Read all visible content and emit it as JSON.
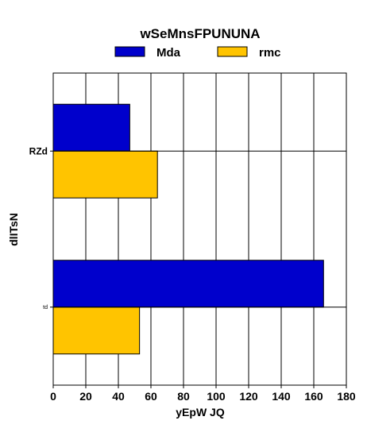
{
  "chart_data": {
    "type": "bar",
    "orientation": "horizontal",
    "title": "wSeMnsFPUNUNA",
    "xlabel": "yEpW JQ",
    "ylabel": "dlITsN",
    "categories": [
      "RZd",
      "td"
    ],
    "series": [
      {
        "name": "Mda",
        "color": "#0000cc",
        "values": [
          47,
          166
        ]
      },
      {
        "name": "rmc",
        "color": "#ffc400",
        "values": [
          64,
          53
        ]
      }
    ],
    "xlim": [
      0,
      180
    ],
    "xticks": [
      "0",
      "20",
      "40",
      "60",
      "80",
      "100",
      "120",
      "140",
      "160",
      "180"
    ],
    "grid": "vertical",
    "legend": "top"
  }
}
